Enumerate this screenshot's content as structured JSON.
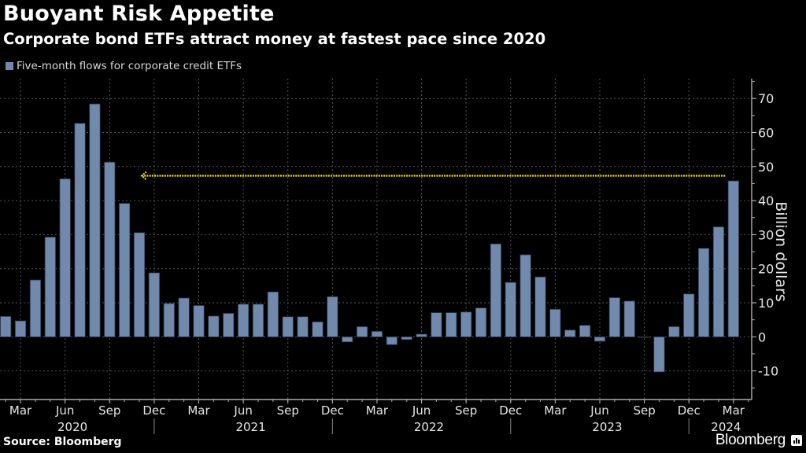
{
  "header": {
    "title": "Buoyant Risk Appetite",
    "subtitle": "Corporate bond ETFs attract money at fastest pace since 2020"
  },
  "footer": {
    "source": "Source: Bloomberg",
    "brand": "Bloomberg",
    "brand_icon": "bloomberg-chart-icon"
  },
  "colors": {
    "bar": "#7089ad",
    "annotation": "#f5e400",
    "background": "#000000",
    "grid": "#555555"
  },
  "chart_data": {
    "type": "bar",
    "title": "Buoyant Risk Appetite",
    "subtitle": "Corporate bond ETFs attract money at fastest pace since 2020",
    "legend": {
      "entries": [
        "Five-month flows for corporate credit ETFs"
      ],
      "placement": "top-left"
    },
    "xlabel": "",
    "ylabel": "Billion dollars",
    "y_axis_side": "right",
    "ylim": [
      -15,
      75
    ],
    "yticks": [
      70,
      60,
      50,
      40,
      30,
      20,
      10,
      0,
      -10
    ],
    "grid": true,
    "x_tick_labels": [
      "Mar",
      "Jun",
      "Sep",
      "Dec",
      "Mar",
      "Jun",
      "Sep",
      "Dec",
      "Mar",
      "Jun",
      "Sep",
      "Dec",
      "Mar",
      "Jun",
      "Sep",
      "Dec",
      "Mar"
    ],
    "x_year_labels": [
      "2020",
      "2021",
      "2022",
      "2023",
      "2024"
    ],
    "categories": [
      "Feb 2020",
      "Mar 2020",
      "Apr 2020",
      "May 2020",
      "Jun 2020",
      "Jul 2020",
      "Aug 2020",
      "Sep 2020",
      "Oct 2020",
      "Nov 2020",
      "Dec 2020",
      "Jan 2021",
      "Feb 2021",
      "Mar 2021",
      "Apr 2021",
      "May 2021",
      "Jun 2021",
      "Jul 2021",
      "Aug 2021",
      "Sep 2021",
      "Oct 2021",
      "Nov 2021",
      "Dec 2021",
      "Jan 2022",
      "Feb 2022",
      "Mar 2022",
      "Apr 2022",
      "May 2022",
      "Jun 2022",
      "Jul 2022",
      "Aug 2022",
      "Sep 2022",
      "Oct 2022",
      "Nov 2022",
      "Dec 2022",
      "Jan 2023",
      "Feb 2023",
      "Mar 2023",
      "Apr 2023",
      "May 2023",
      "Jun 2023",
      "Jul 2023",
      "Aug 2023",
      "Sep 2023",
      "Oct 2023",
      "Nov 2023",
      "Dec 2023",
      "Jan 2024",
      "Feb 2024",
      "Mar 2024"
    ],
    "series": [
      {
        "name": "Five-month flows for corporate credit ETFs",
        "values": [
          6.0,
          4.7,
          16.7,
          29.3,
          46.4,
          62.7,
          68.4,
          51.3,
          39.2,
          30.6,
          18.8,
          9.8,
          11.4,
          9.2,
          6.1,
          6.9,
          9.6,
          9.6,
          13.2,
          5.9,
          5.9,
          4.4,
          11.8,
          -1.5,
          3.0,
          1.6,
          -2.3,
          -0.8,
          0.8,
          7.1,
          7.1,
          7.3,
          8.5,
          27.3,
          16.0,
          24.1,
          17.6,
          8.1,
          2.0,
          3.4,
          -1.3,
          11.5,
          10.5,
          -0.2,
          -10.3,
          3.0,
          12.6,
          26.0,
          32.3,
          45.8
        ]
      }
    ],
    "annotations": [
      {
        "type": "dotted-arrow",
        "value": 47.3,
        "from": "Mar 2024",
        "to": "Nov 2020",
        "direction": "left"
      }
    ]
  }
}
